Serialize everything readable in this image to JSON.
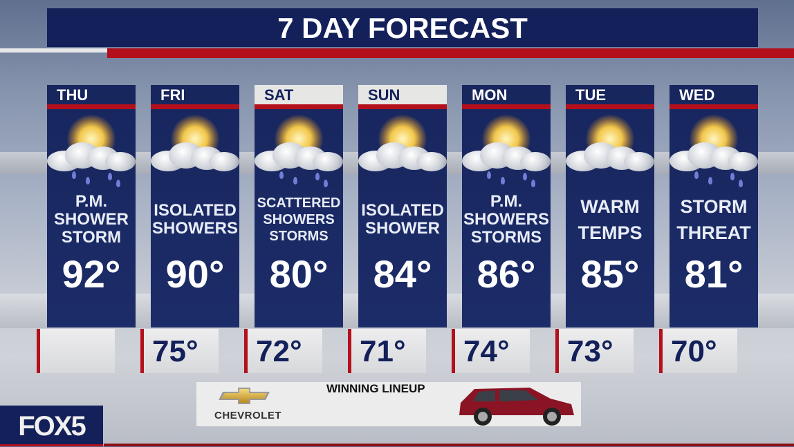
{
  "title": "7 DAY FORECAST",
  "days": [
    {
      "day": "THU",
      "desc": [
        "P.M.",
        "SHOWER",
        "STORM"
      ],
      "high": "92°",
      "low": "",
      "weekend": false,
      "icon": "sun-cloud-rain-icon"
    },
    {
      "day": "FRI",
      "desc": [
        "ISOLATED",
        "SHOWERS"
      ],
      "high": "90°",
      "low": "75°",
      "weekend": false,
      "icon": "sun-cloud-icon"
    },
    {
      "day": "SAT",
      "desc": [
        "SCATTERED",
        "SHOWERS",
        "STORMS"
      ],
      "high": "80°",
      "low": "72°",
      "weekend": true,
      "icon": "sun-cloud-rain-icon"
    },
    {
      "day": "SUN",
      "desc": [
        "ISOLATED",
        "SHOWER"
      ],
      "high": "84°",
      "low": "71°",
      "weekend": true,
      "icon": "sun-cloud-icon"
    },
    {
      "day": "MON",
      "desc": [
        "P.M.",
        "SHOWERS",
        "STORMS"
      ],
      "high": "86°",
      "low": "74°",
      "weekend": false,
      "icon": "sun-cloud-rain-icon"
    },
    {
      "day": "TUE",
      "desc": [
        "WARM",
        "TEMPS"
      ],
      "high": "85°",
      "low": "73°",
      "weekend": false,
      "icon": "sun-cloud-icon"
    },
    {
      "day": "WED",
      "desc": [
        "STORM",
        "THREAT"
      ],
      "high": "81°",
      "low": "70°",
      "weekend": false,
      "icon": "sun-cloud-rain-icon"
    }
  ],
  "ad": {
    "brand": "CHEVROLET",
    "headline": "WINNING LINEUP"
  },
  "logo": "FOX5",
  "colors": {
    "navy": "#13205a",
    "red": "#b3101c",
    "weekend_header": "#e6e6e4"
  }
}
